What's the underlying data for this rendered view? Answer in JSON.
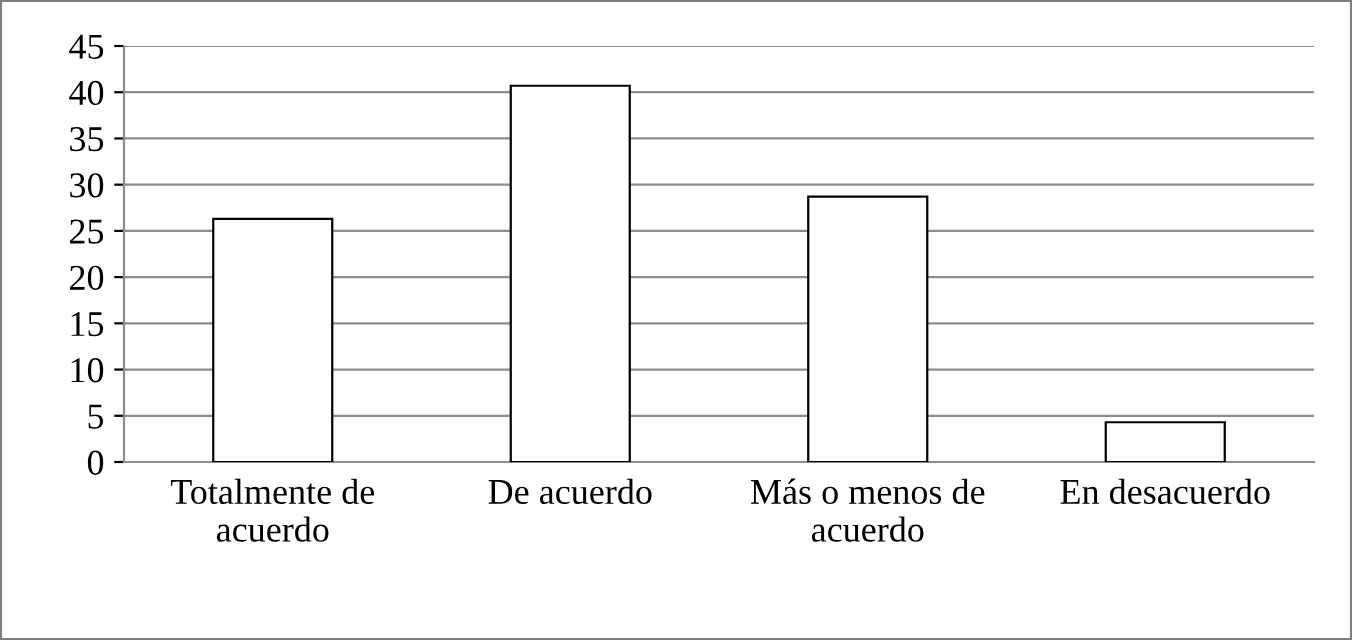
{
  "chart_data": {
    "type": "bar",
    "categories": [
      "Totalmente de\nacuerdo",
      "De acuerdo",
      "Más o menos de\nacuerdo",
      "En desacuerdo"
    ],
    "values": [
      26.3,
      40.7,
      28.7,
      4.3
    ],
    "color": "#ffffff",
    "ylim": [
      0,
      45
    ],
    "yticks": [
      0,
      5,
      10,
      15,
      20,
      25,
      30,
      35,
      40,
      45
    ],
    "grid": "y",
    "legend": false
  }
}
